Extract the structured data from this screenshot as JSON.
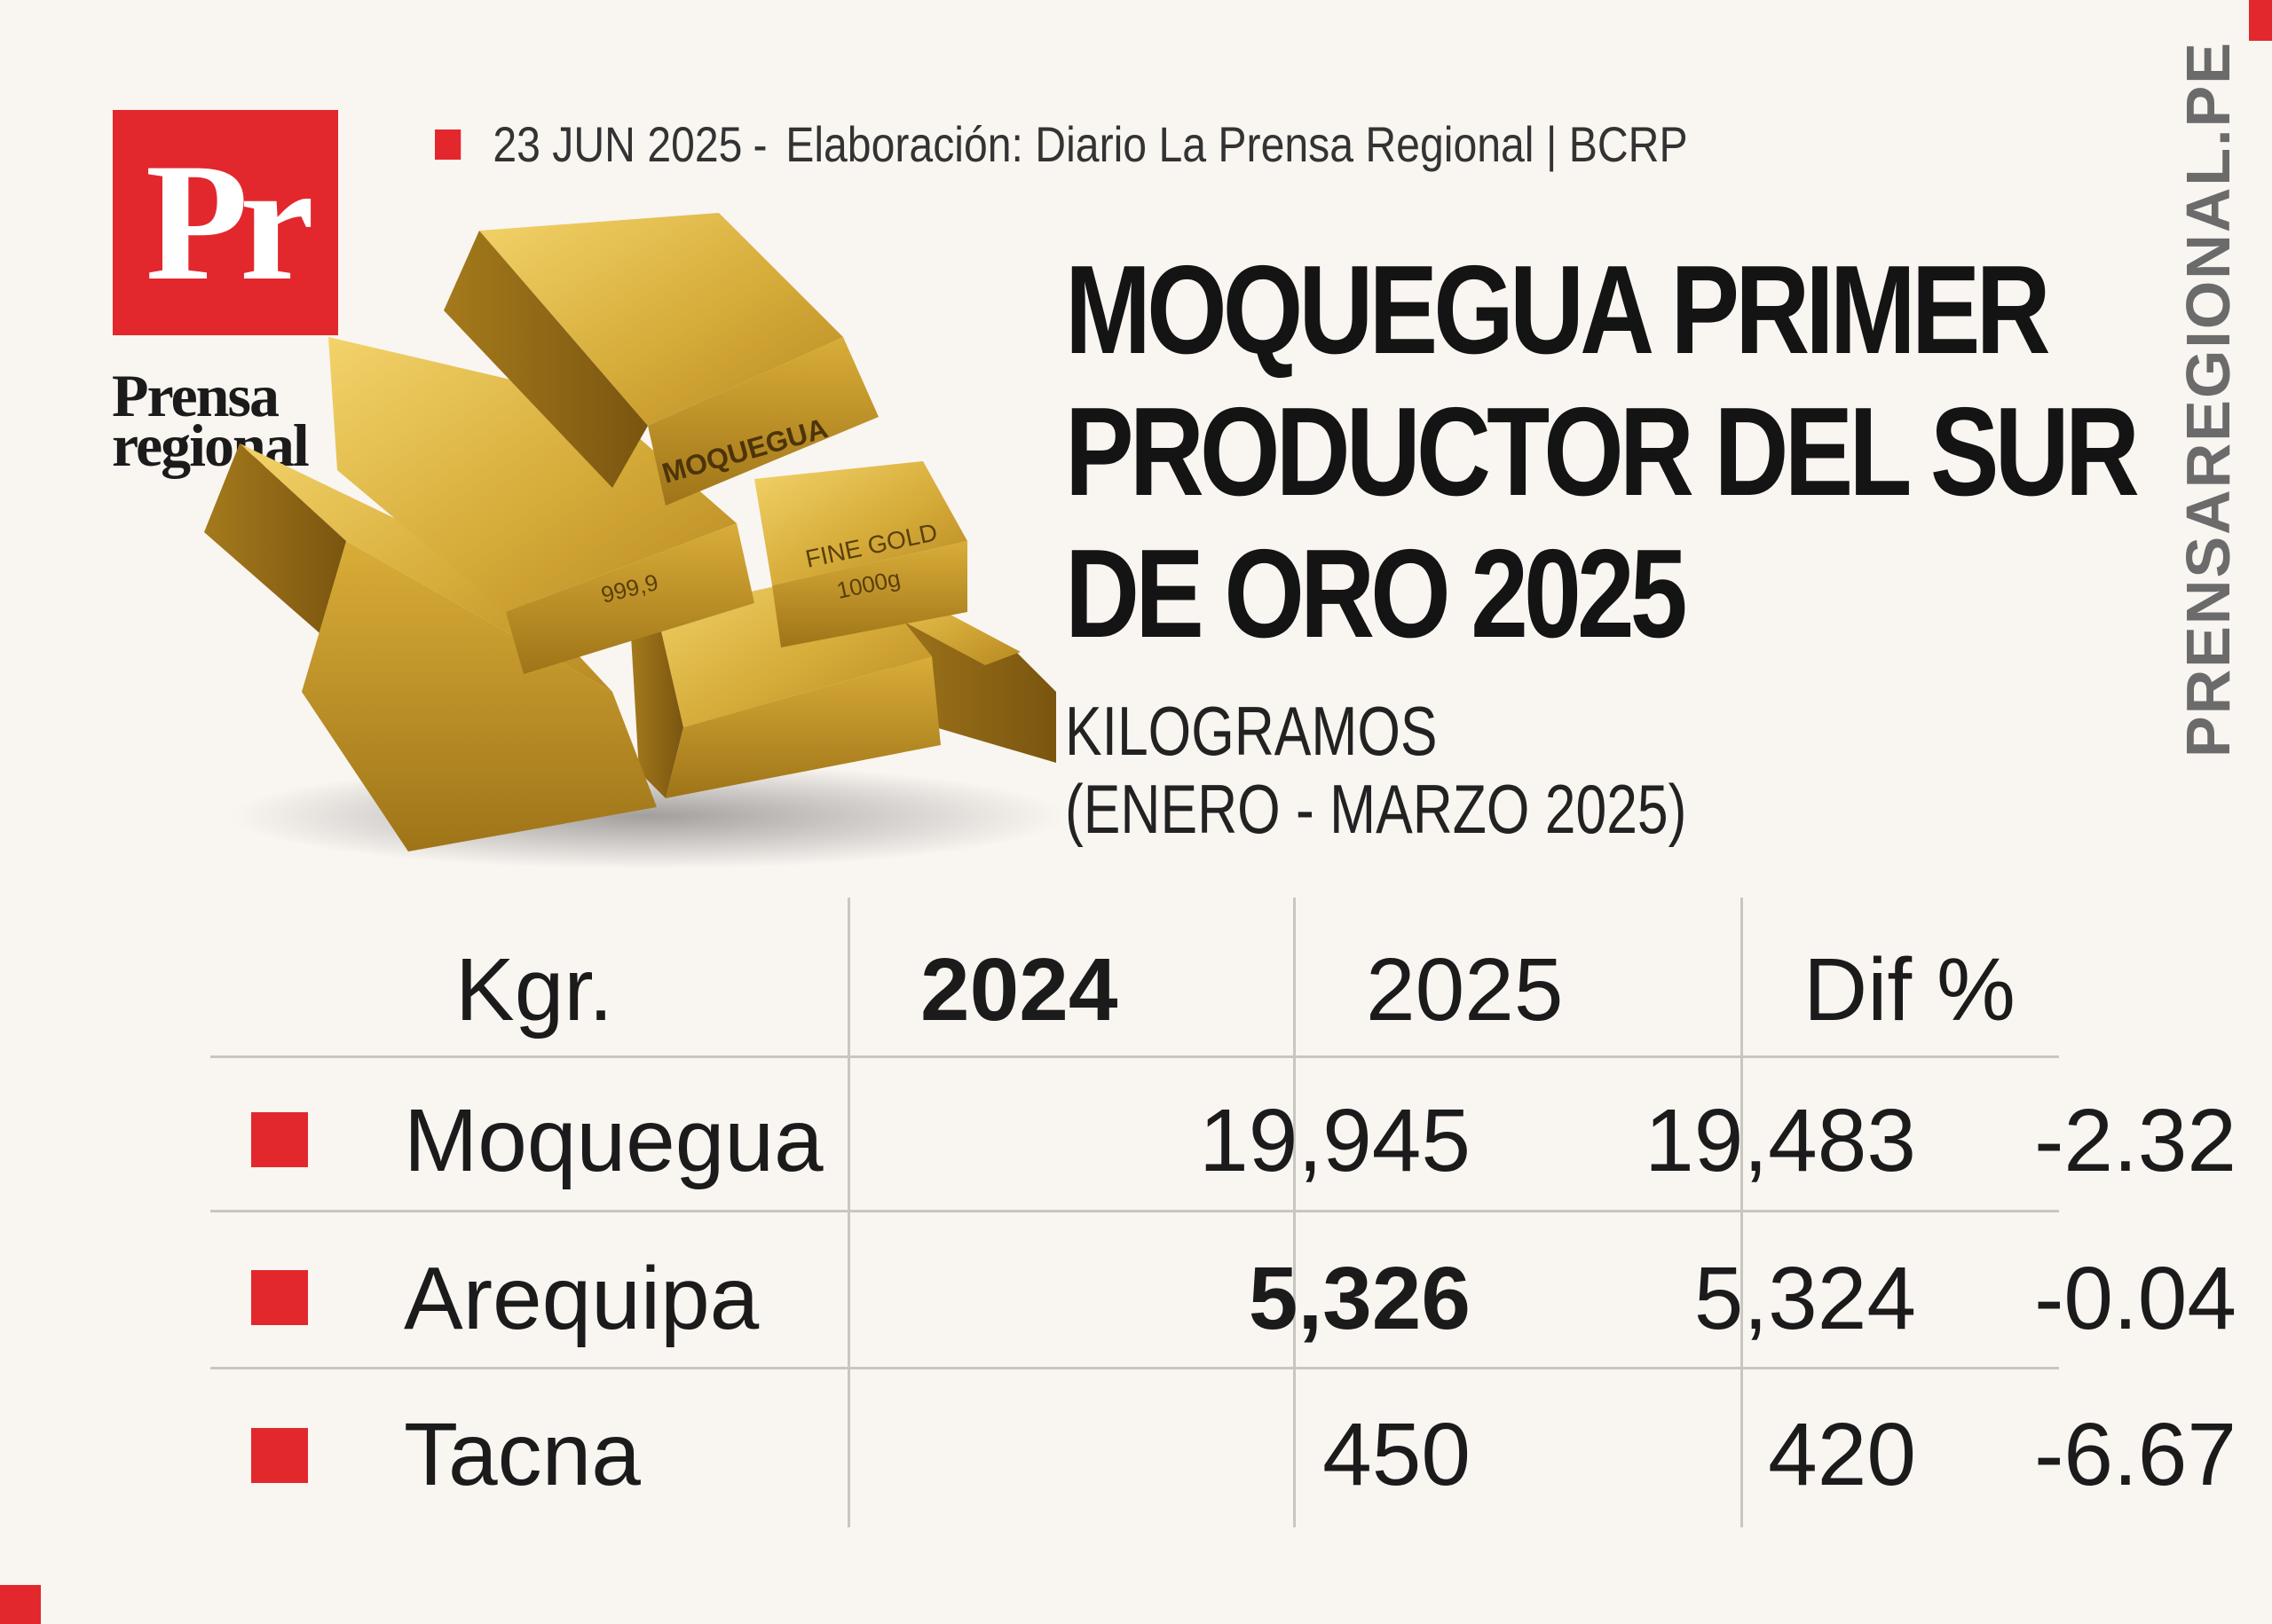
{
  "logo": {
    "mark": "Pr",
    "word_line1": "Prensa",
    "word_line2": "regional"
  },
  "meta": {
    "date": "23 JUN 2025",
    "separator": "-",
    "source": "Elaboración: Diario La Prensa Regional | BCRP"
  },
  "gold_bars": {
    "label_top": "MOQUEGUA",
    "label_left": "999,9",
    "label_right_line1": "FINE GOLD",
    "label_right_line2": "1000g"
  },
  "title": {
    "line1": "MOQUEGUA PRIMER",
    "line2": "PRODUCTOR DEL SUR",
    "line3": "DE ORO 2025"
  },
  "subtitle": {
    "line1": "KILOGRAMOS",
    "line2": "(ENERO - MARZO 2025)"
  },
  "side_text": "PRENSAREGIONAL.PE",
  "table": {
    "headers": [
      "Kgr.",
      "2024",
      "2025",
      "Dif %"
    ],
    "rows": [
      {
        "region": "Moquegua",
        "y2024": "19,945",
        "y2025": "19,483",
        "dif": "-2.32"
      },
      {
        "region": "Arequipa",
        "y2024": "5,326",
        "y2025": "5,324",
        "dif": "-0.04"
      },
      {
        "region": "Tacna",
        "y2024": "450",
        "y2025": "420",
        "dif": "-6.67"
      }
    ]
  },
  "colors": {
    "accent": "#e2282d",
    "background": "#f9f5f1",
    "gold": "#c9a227"
  }
}
